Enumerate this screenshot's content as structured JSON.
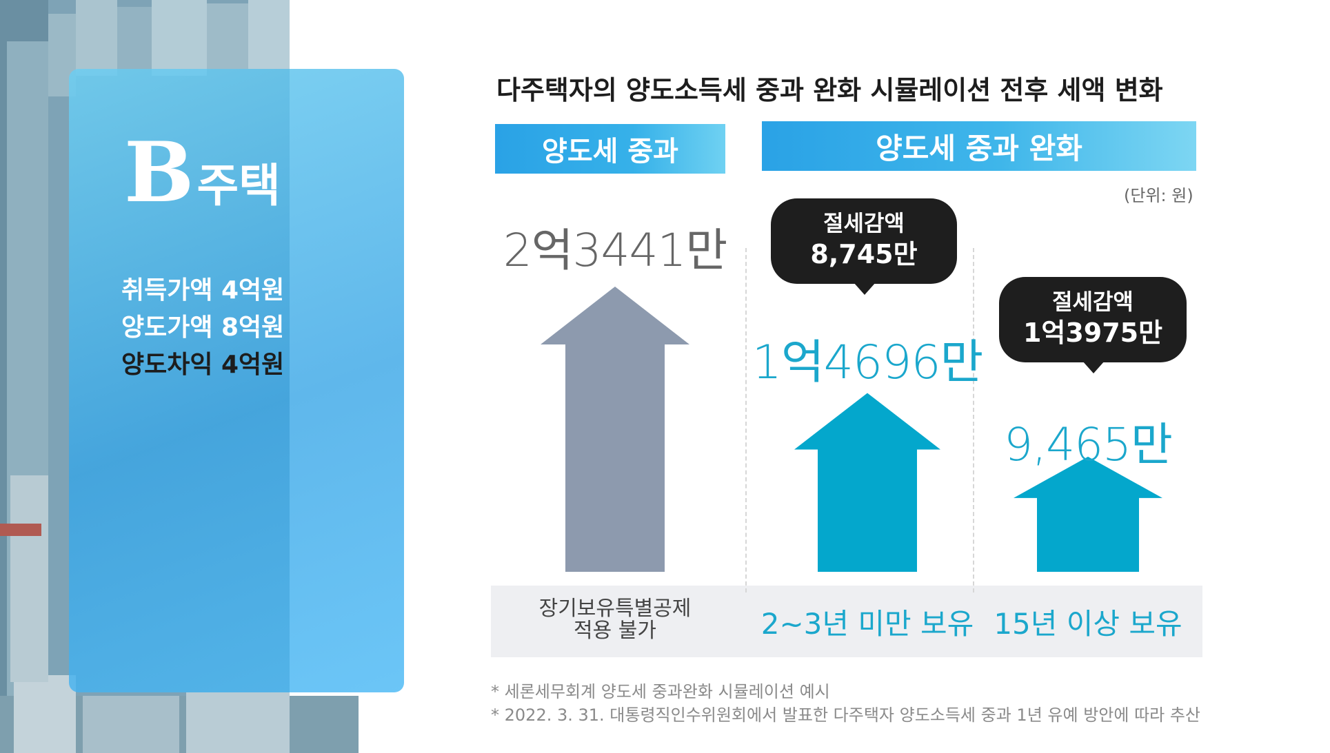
{
  "house_card": {
    "label_letter": "B",
    "label_rest": "주택",
    "lines": [
      {
        "text": "취득가액 4억원"
      },
      {
        "text": "양도가액 8억원"
      },
      {
        "text": "양도차익 4억원"
      }
    ]
  },
  "chart": {
    "title": "다주택자의 양도소득세 중과 완화 시뮬레이션 전후 세액 변화",
    "banner_left": "양도세 중과",
    "banner_right": "양도세 중과 완화",
    "unit": "(단위: 원)"
  },
  "chart_data": {
    "type": "bar",
    "categories": [
      "장기보유특별공제 적용 불가",
      "2~3년 미만 보유",
      "15년 이상 보유"
    ],
    "category_lines": [
      [
        "장기보유특별공제",
        "적용 불가"
      ],
      [
        "2~3년 미만 보유"
      ],
      [
        "15년 이상 보유"
      ]
    ],
    "groups": [
      "양도세 중과",
      "양도세 중과 완화",
      "양도세 중과 완화"
    ],
    "values": [
      234410000,
      146960000,
      94650000
    ],
    "value_labels": [
      "2억3441만",
      "1억4696만",
      "9,465만"
    ],
    "savings": [
      null,
      {
        "label": "절세감액",
        "value": "8,745만"
      },
      {
        "label": "절세감액",
        "value": "1억3975만"
      }
    ],
    "colors": [
      "#8d9aae",
      "#04a7cc",
      "#04a7cc"
    ],
    "value_label_colors": [
      "#666666",
      "#1ba7cc",
      "#1ba7cc"
    ]
  },
  "footnotes": [
    "* 세론세무회계 양도세 중과완화 시뮬레이션 예시",
    "* 2022. 3. 31. 대통령직인수위원회에서 발표한 다주택자 양도소득세 중과 1년 유예 방안에 따라 추산"
  ]
}
